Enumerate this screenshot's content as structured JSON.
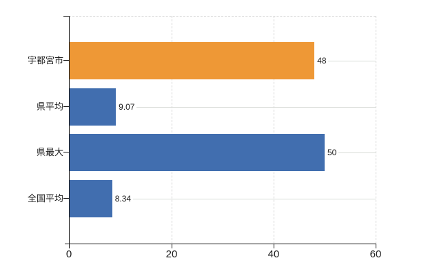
{
  "chart_data": {
    "type": "bar",
    "orientation": "horizontal",
    "title": "",
    "categories": [
      "宇都宮市",
      "県平均",
      "県最大",
      "全国平均"
    ],
    "values": [
      48,
      9.07,
      50,
      8.34
    ],
    "value_labels": [
      "48",
      "9.07",
      "50",
      "8.34"
    ],
    "series_colors": [
      "#ee9836",
      "#416eaf",
      "#416eaf",
      "#416eaf"
    ],
    "x_ticks": [
      0,
      20,
      40,
      60
    ],
    "x_tick_labels": [
      "0",
      "20",
      "40",
      "60"
    ],
    "xlim": [
      0,
      60
    ],
    "legend": "none",
    "grid": "dashed vertical gridlines at x ticks, dashed top plot border, light leader line from each value label to right plot edge"
  },
  "style": {
    "background": "#ffffff",
    "axis_color": "#1a1a1a",
    "grid_color": "#d5d5d5",
    "leader_color": "#d9dcd8",
    "text_color": "#1a1a1a",
    "bar_orange": "#ee9836",
    "bar_blue": "#416eaf"
  }
}
